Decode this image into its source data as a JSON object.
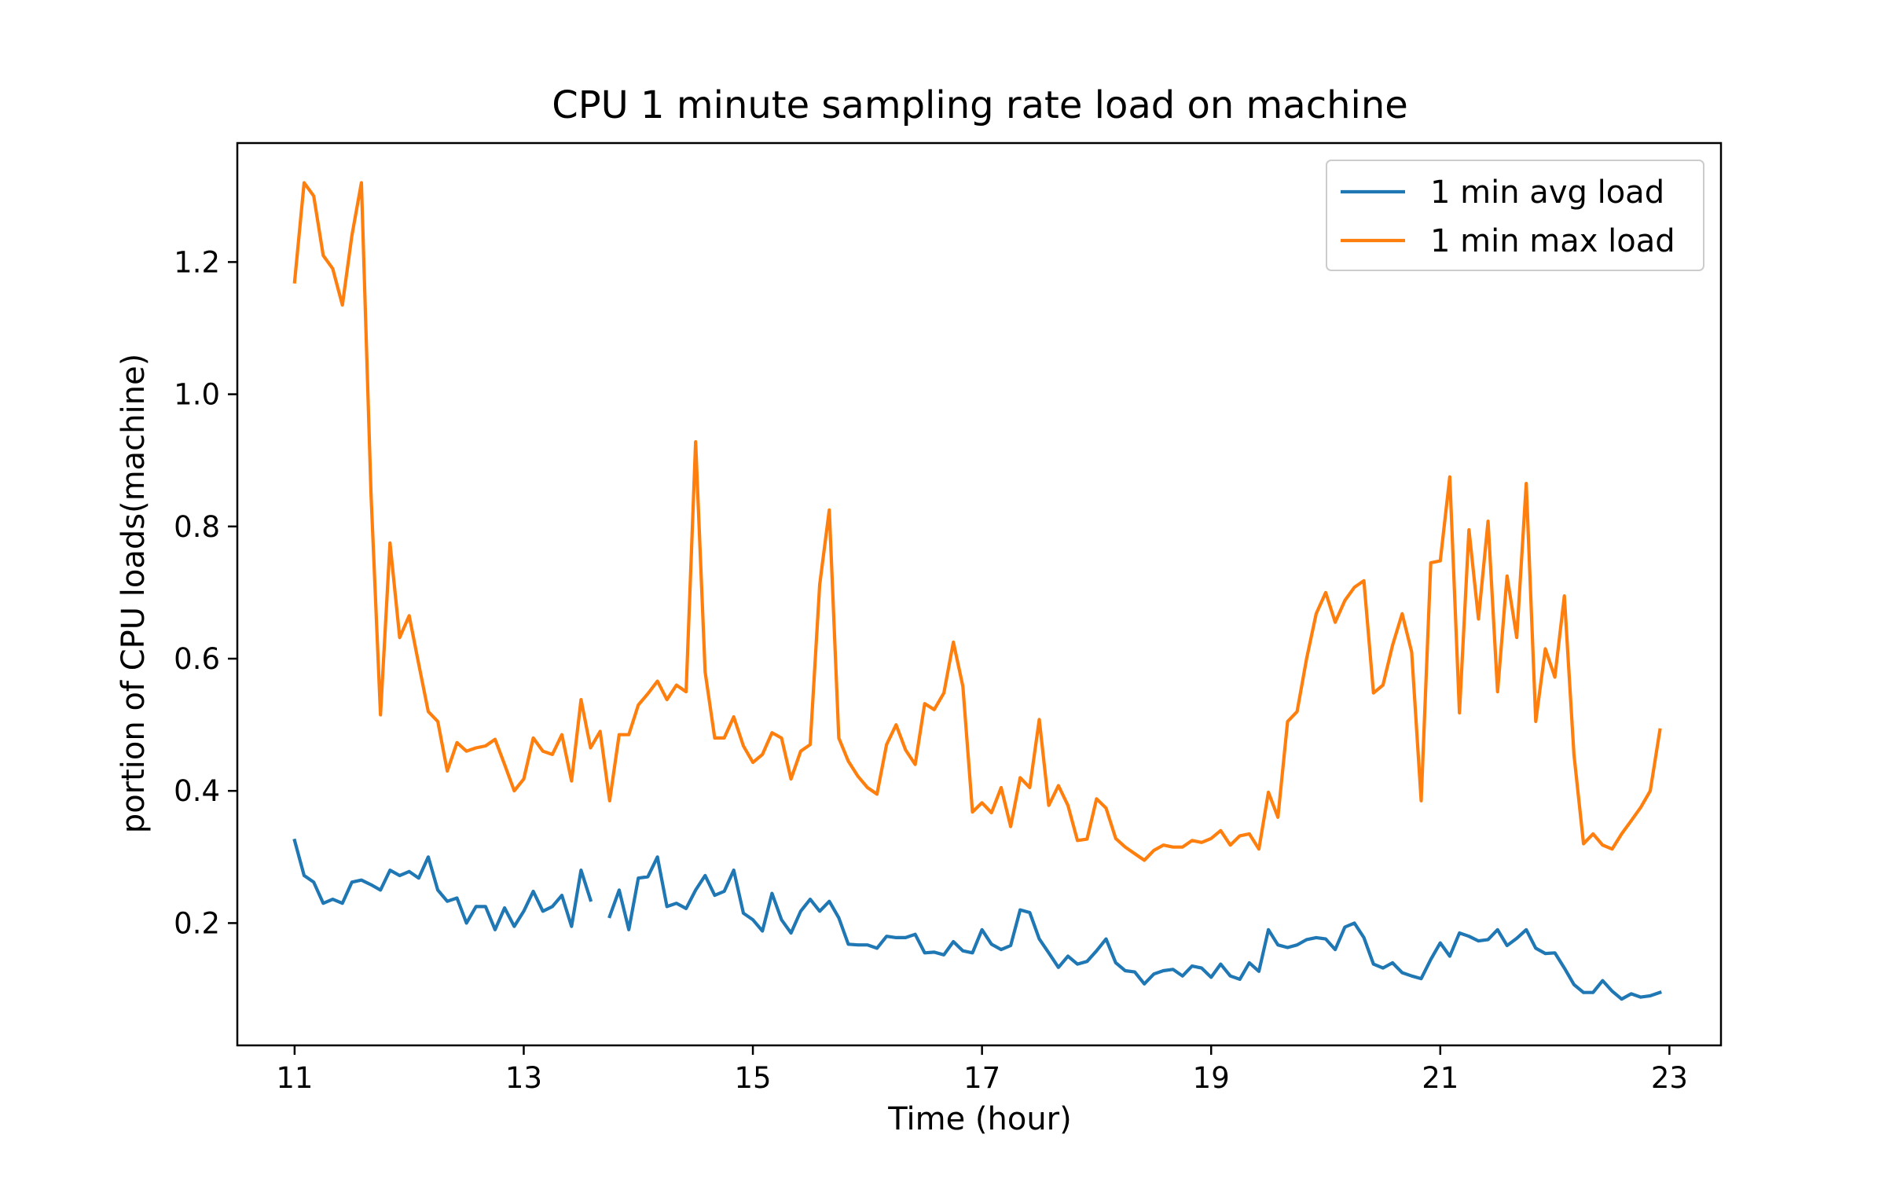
{
  "chart_data": {
    "type": "line",
    "title": "CPU 1 minute sampling rate load on machine",
    "xlabel": "Time (hour)",
    "ylabel": "portion of CPU loads(machine)",
    "xlim": [
      10.5,
      23.45
    ],
    "ylim": [
      0.015,
      1.38
    ],
    "xticks": [
      11,
      13,
      15,
      17,
      19,
      21,
      23
    ],
    "xtick_labels": [
      "11",
      "13",
      "15",
      "17",
      "19",
      "21",
      "23"
    ],
    "yticks": [
      0.2,
      0.4,
      0.6,
      0.8,
      1.0,
      1.2
    ],
    "ytick_labels": [
      "0.2",
      "0.4",
      "0.6",
      "0.8",
      "1.0",
      "1.2"
    ],
    "grid": false,
    "legend_position": "top-right",
    "colors": {
      "avg": "#1f77b4",
      "max": "#ff7f0e",
      "frame": "#000000"
    },
    "series": [
      {
        "name": "1 min avg load",
        "color": "#1f77b4",
        "x": [
          11.0,
          11.083,
          11.167,
          11.25,
          11.333,
          11.417,
          11.5,
          11.583,
          11.667,
          11.75,
          11.833,
          11.917,
          12.0,
          12.083,
          12.167,
          12.25,
          12.333,
          12.417,
          12.5,
          12.583,
          12.667,
          12.75,
          12.833,
          12.917,
          13.0,
          13.083,
          13.167,
          13.25,
          13.333,
          13.417,
          13.5,
          13.583,
          13.667,
          13.75,
          13.833,
          13.917,
          14.0,
          14.083,
          14.167,
          14.25,
          14.333,
          14.417,
          14.5,
          14.583,
          14.667,
          14.75,
          14.833,
          14.917,
          15.0,
          15.083,
          15.167,
          15.25,
          15.333,
          15.417,
          15.5,
          15.583,
          15.667,
          15.75,
          15.833,
          15.917,
          16.0,
          16.083,
          16.167,
          16.25,
          16.333,
          16.417,
          16.5,
          16.583,
          16.667,
          16.75,
          16.833,
          16.917,
          17.0,
          17.083,
          17.167,
          17.25,
          17.333,
          17.417,
          17.5,
          17.583,
          17.667,
          17.75,
          17.833,
          17.917,
          18.0,
          18.083,
          18.167,
          18.25,
          18.333,
          18.417,
          18.5,
          18.583,
          18.667,
          18.75,
          18.833,
          18.917,
          19.0,
          19.083,
          19.167,
          19.25,
          19.333,
          19.417,
          19.5,
          19.583,
          19.667,
          19.75,
          19.833,
          19.917,
          20.0,
          20.083,
          20.167,
          20.25,
          20.333,
          20.417,
          20.5,
          20.583,
          20.667,
          20.75,
          20.833,
          20.917,
          21.0,
          21.083,
          21.167,
          21.25,
          21.333,
          21.417,
          21.5,
          21.583,
          21.667,
          21.75,
          21.833,
          21.917,
          22.0,
          22.083,
          22.167,
          22.25,
          22.333,
          22.417,
          22.5,
          22.583,
          22.667,
          22.75,
          22.833,
          22.917
        ],
        "y": [
          0.325,
          0.272,
          0.262,
          0.23,
          0.236,
          0.23,
          0.262,
          0.265,
          0.258,
          0.25,
          0.28,
          0.272,
          0.278,
          0.268,
          0.3,
          0.25,
          0.233,
          0.238,
          0.2,
          0.225,
          0.225,
          0.19,
          0.223,
          0.195,
          0.218,
          0.248,
          0.218,
          0.225,
          0.242,
          0.195,
          0.28,
          0.235,
          null,
          0.21,
          0.25,
          0.19,
          0.268,
          0.27,
          0.3,
          0.225,
          0.23,
          0.222,
          0.25,
          0.272,
          0.242,
          0.248,
          0.28,
          0.215,
          0.205,
          0.188,
          0.245,
          0.205,
          0.185,
          0.218,
          0.236,
          0.218,
          0.233,
          0.208,
          0.168,
          0.167,
          0.167,
          0.162,
          0.18,
          0.178,
          0.178,
          0.183,
          0.155,
          0.156,
          0.152,
          0.172,
          0.158,
          0.155,
          0.19,
          0.168,
          0.16,
          0.166,
          0.22,
          0.216,
          0.176,
          0.155,
          0.133,
          0.15,
          0.138,
          0.142,
          0.158,
          0.176,
          0.14,
          0.128,
          0.126,
          0.108,
          0.123,
          0.128,
          0.13,
          0.12,
          0.135,
          0.132,
          0.118,
          0.138,
          0.12,
          0.115,
          0.14,
          0.127,
          0.19,
          0.167,
          0.163,
          0.167,
          0.175,
          0.178,
          0.176,
          0.16,
          0.194,
          0.2,
          0.178,
          0.138,
          0.132,
          0.14,
          0.125,
          0.12,
          0.116,
          0.145,
          0.17,
          0.15,
          0.185,
          0.18,
          0.173,
          0.175,
          0.19,
          0.166,
          0.177,
          0.19,
          0.162,
          0.154,
          0.155,
          0.132,
          0.107,
          0.095,
          0.095,
          0.113,
          0.097,
          0.085,
          0.093,
          0.088,
          0.09,
          0.095
        ]
      },
      {
        "name": "1 min max load",
        "color": "#ff7f0e",
        "x": [
          11.0,
          11.083,
          11.167,
          11.25,
          11.333,
          11.417,
          11.5,
          11.583,
          11.667,
          11.75,
          11.833,
          11.917,
          12.0,
          12.083,
          12.167,
          12.25,
          12.333,
          12.417,
          12.5,
          12.583,
          12.667,
          12.75,
          12.833,
          12.917,
          13.0,
          13.083,
          13.167,
          13.25,
          13.333,
          13.417,
          13.5,
          13.583,
          13.667,
          13.75,
          13.833,
          13.917,
          14.0,
          14.083,
          14.167,
          14.25,
          14.333,
          14.417,
          14.5,
          14.583,
          14.667,
          14.75,
          14.833,
          14.917,
          15.0,
          15.083,
          15.167,
          15.25,
          15.333,
          15.417,
          15.5,
          15.583,
          15.667,
          15.75,
          15.833,
          15.917,
          16.0,
          16.083,
          16.167,
          16.25,
          16.333,
          16.417,
          16.5,
          16.583,
          16.667,
          16.75,
          16.833,
          16.917,
          17.0,
          17.083,
          17.167,
          17.25,
          17.333,
          17.417,
          17.5,
          17.583,
          17.667,
          17.75,
          17.833,
          17.917,
          18.0,
          18.083,
          18.167,
          18.25,
          18.333,
          18.417,
          18.5,
          18.583,
          18.667,
          18.75,
          18.833,
          18.917,
          19.0,
          19.083,
          19.167,
          19.25,
          19.333,
          19.417,
          19.5,
          19.583,
          19.667,
          19.75,
          19.833,
          19.917,
          20.0,
          20.083,
          20.167,
          20.25,
          20.333,
          20.417,
          20.5,
          20.583,
          20.667,
          20.75,
          20.833,
          20.917,
          21.0,
          21.083,
          21.167,
          21.25,
          21.333,
          21.417,
          21.5,
          21.583,
          21.667,
          21.75,
          21.833,
          21.917,
          22.0,
          22.083,
          22.167,
          22.25,
          22.333,
          22.417,
          22.5,
          22.583,
          22.667,
          22.75,
          22.833,
          22.917
        ],
        "y": [
          1.17,
          1.32,
          1.3,
          1.21,
          1.19,
          1.135,
          1.24,
          1.32,
          0.85,
          0.515,
          0.775,
          0.632,
          0.665,
          0.592,
          0.52,
          0.505,
          0.43,
          0.473,
          0.46,
          0.465,
          0.468,
          0.478,
          0.44,
          0.4,
          0.418,
          0.48,
          0.46,
          0.455,
          0.485,
          0.415,
          0.538,
          0.465,
          0.49,
          0.385,
          0.485,
          0.485,
          0.53,
          0.547,
          0.566,
          0.538,
          0.56,
          0.55,
          0.928,
          0.58,
          0.48,
          0.48,
          0.512,
          0.468,
          0.443,
          0.455,
          0.488,
          0.48,
          0.418,
          0.46,
          0.47,
          0.712,
          0.825,
          0.48,
          0.445,
          0.422,
          0.405,
          0.395,
          0.47,
          0.5,
          0.462,
          0.44,
          0.532,
          0.523,
          0.548,
          0.625,
          0.558,
          0.368,
          0.382,
          0.367,
          0.405,
          0.346,
          0.42,
          0.405,
          0.508,
          0.378,
          0.408,
          0.378,
          0.325,
          0.327,
          0.388,
          0.374,
          0.328,
          0.315,
          0.305,
          0.295,
          0.31,
          0.318,
          0.315,
          0.315,
          0.325,
          0.322,
          0.328,
          0.34,
          0.318,
          0.332,
          0.335,
          0.312,
          0.398,
          0.36,
          0.505,
          0.52,
          0.6,
          0.668,
          0.7,
          0.655,
          0.688,
          0.708,
          0.718,
          0.548,
          0.56,
          0.62,
          0.668,
          0.61,
          0.385,
          0.745,
          0.748,
          0.875,
          0.518,
          0.795,
          0.66,
          0.808,
          0.55,
          0.725,
          0.632,
          0.865,
          0.505,
          0.615,
          0.572,
          0.695,
          0.455,
          0.32,
          0.335,
          0.318,
          0.312,
          0.335,
          0.355,
          0.375,
          0.4,
          0.492
        ]
      }
    ]
  }
}
